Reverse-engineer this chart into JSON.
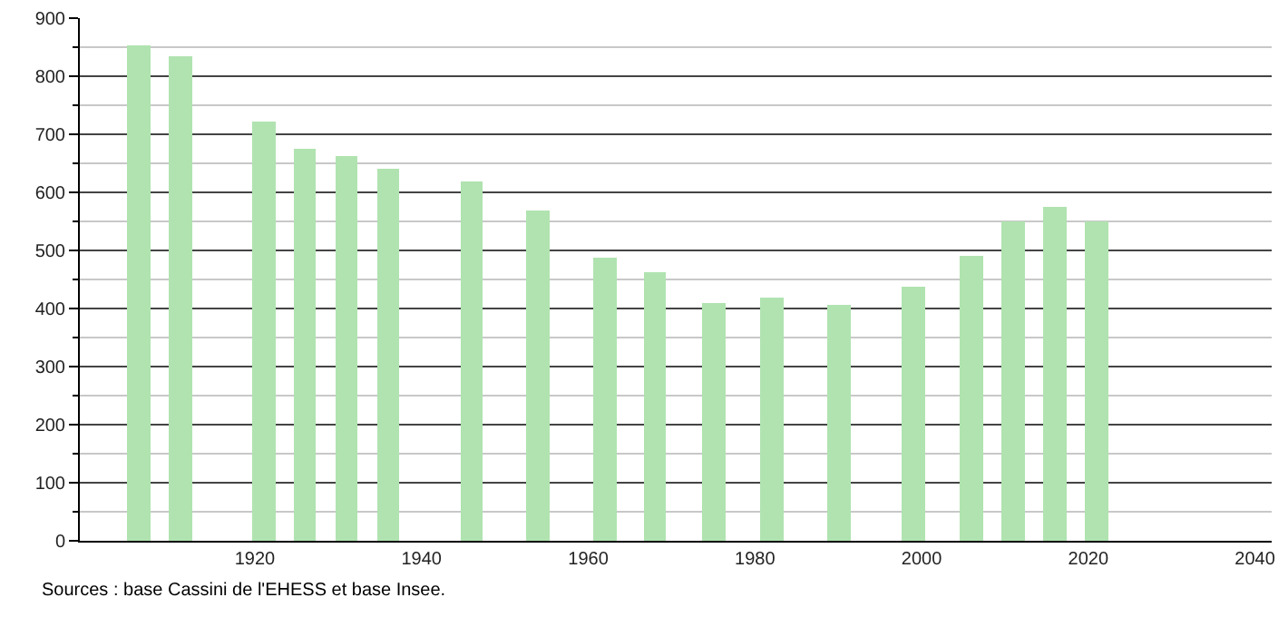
{
  "chart_data": {
    "type": "bar",
    "x": [
      1906,
      1911,
      1921,
      1926,
      1931,
      1936,
      1946,
      1954,
      1962,
      1968,
      1975,
      1982,
      1990,
      1999,
      2006,
      2011,
      2016,
      2021
    ],
    "values": [
      853,
      835,
      723,
      676,
      664,
      641,
      620,
      569,
      489,
      461,
      408,
      420,
      405,
      436,
      492,
      550,
      576,
      550
    ],
    "color": "#b0e3b0",
    "xlim": [
      1899,
      2042
    ],
    "xticks": [
      1920,
      1940,
      1960,
      1980,
      2000,
      2020,
      2040
    ],
    "ylim": [
      0,
      900
    ],
    "yticks": [
      0,
      {
        "value": 50,
        "label": null
      },
      100,
      {
        "value": 150,
        "label": null
      },
      200,
      {
        "value": 250,
        "label": null
      },
      300,
      {
        "value": 350,
        "label": null
      },
      400,
      {
        "value": 450,
        "label": null
      },
      500,
      {
        "value": 550,
        "label": null
      },
      600,
      {
        "value": 650,
        "label": null
      },
      700,
      {
        "value": 750,
        "label": null
      },
      800,
      {
        "value": 850,
        "label": null
      },
      900
    ],
    "grid": "y",
    "annotations": [
      "Sources : base Cassini de l'EHESS et base Insee."
    ]
  }
}
